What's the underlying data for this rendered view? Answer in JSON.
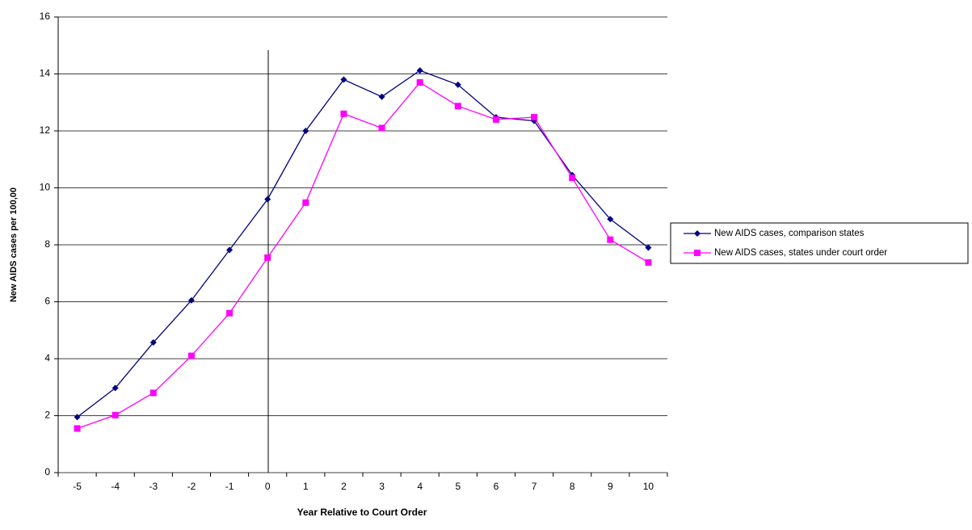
{
  "chart_data": {
    "type": "line",
    "x_label": "Year Relative to Court Order",
    "y_label": "New AIDS cases per 100,00",
    "categories": [
      "-5",
      "-4",
      "-3",
      "-2",
      "-1",
      "0",
      "1",
      "2",
      "3",
      "4",
      "5",
      "6",
      "7",
      "8",
      "9",
      "10"
    ],
    "series": [
      {
        "name": "New AIDS cases, comparison states",
        "color": "#000080",
        "marker": "diamond",
        "values": [
          1.95,
          2.97,
          4.57,
          6.05,
          7.82,
          9.6,
          12.0,
          13.8,
          13.2,
          14.12,
          13.62,
          12.48,
          12.35,
          10.45,
          8.9,
          7.9
        ]
      },
      {
        "name": "New AIDS cases, states under court order",
        "color": "#ff00ff",
        "marker": "square",
        "values": [
          1.55,
          2.02,
          2.8,
          4.1,
          5.6,
          7.55,
          9.48,
          12.6,
          12.1,
          13.7,
          12.87,
          12.4,
          12.48,
          10.35,
          8.18,
          7.38
        ]
      }
    ],
    "ylim": [
      0,
      16
    ],
    "yticks": [
      0,
      2,
      4,
      6,
      8,
      10,
      12,
      14,
      16
    ],
    "grid": true,
    "legend": "right"
  }
}
